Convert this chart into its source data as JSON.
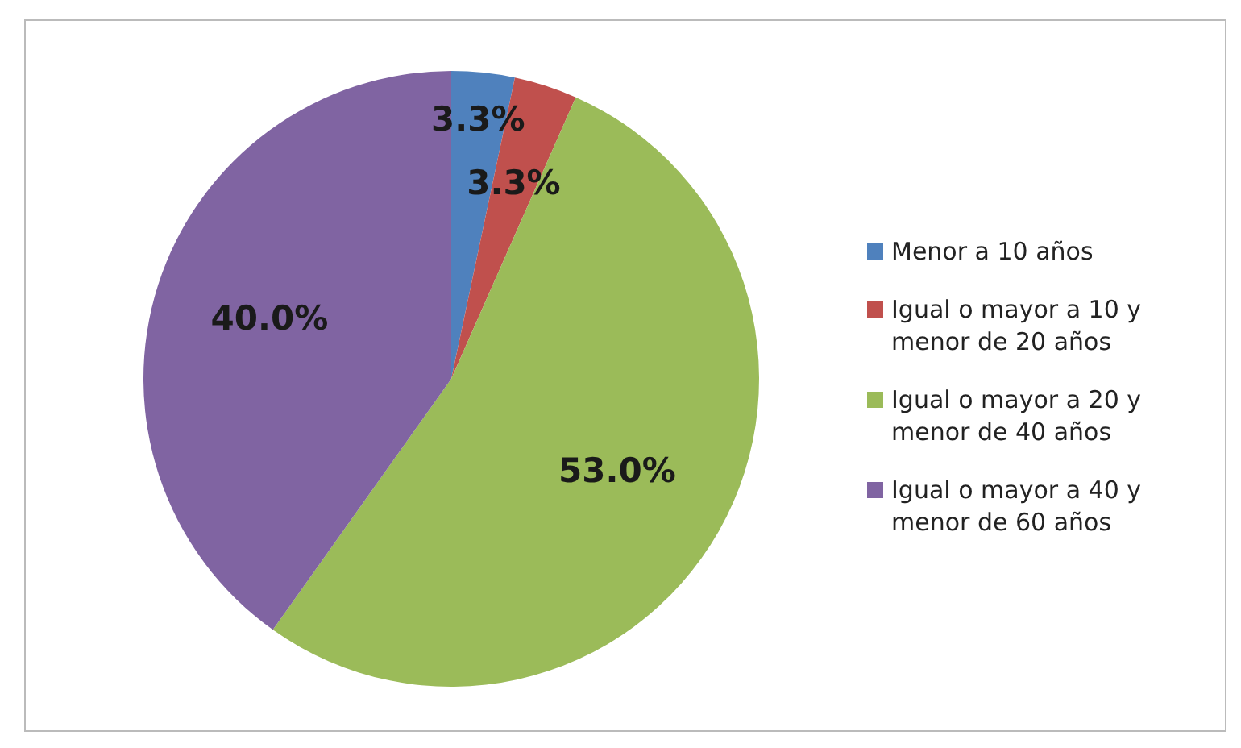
{
  "chart_data": {
    "type": "pie",
    "categories": [
      "Menor a 10 años",
      "Igual o mayor a 10 y menor de 20 años",
      "Igual o mayor a 20 y menor de 40 años",
      "Igual o mayor a 40 y menor de 60 años"
    ],
    "values": [
      3.3,
      3.3,
      53.0,
      40.0
    ],
    "value_labels": [
      "3.3%",
      "3.3%",
      "53.0%",
      "40.0%"
    ],
    "colors": [
      "#4f81bd",
      "#c0504d",
      "#9bbb59",
      "#8064a2"
    ],
    "legend": "right"
  }
}
